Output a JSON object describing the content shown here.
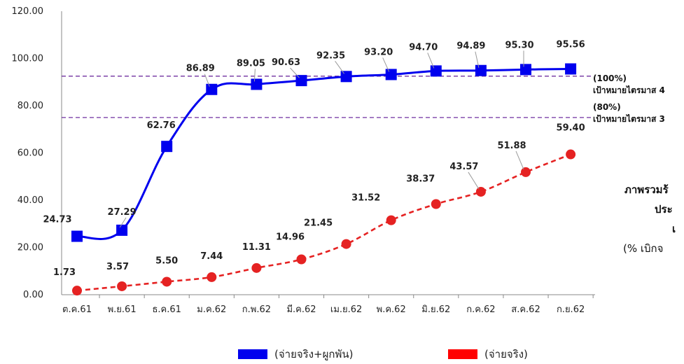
{
  "chart_data": {
    "type": "line",
    "categories": [
      "ต.ค.61",
      "พ.ย.61",
      "ธ.ค.61",
      "ม.ค.62",
      "ก.พ.62",
      "มี.ค.62",
      "เม.ย.62",
      "พ.ค.62",
      "มิ.ย.62",
      "ก.ค.62",
      "ส.ค.62",
      "ก.ย.62"
    ],
    "series": [
      {
        "name": "(จ่ายจริง+ผูกพัน)",
        "color": "#0000ee",
        "marker": "square",
        "line": "solid",
        "values": [
          24.73,
          27.29,
          62.76,
          86.89,
          89.05,
          90.63,
          92.35,
          93.2,
          94.7,
          94.89,
          95.3,
          95.56
        ],
        "labels": [
          "24.73",
          "27.29",
          "62.76",
          "86.89",
          "89.05",
          "90.63",
          "92.35",
          "93.20",
          "94.70",
          "94.89",
          "95.30",
          "95.56"
        ]
      },
      {
        "name": "(จ่ายจริง)",
        "color": "#e52222",
        "marker": "circle",
        "line": "dashed",
        "values": [
          1.73,
          3.57,
          5.5,
          7.44,
          11.31,
          14.96,
          21.45,
          31.52,
          38.37,
          43.57,
          51.88,
          59.4
        ],
        "labels": [
          "1.73",
          "3.57",
          "5.50",
          "7.44",
          "11.31",
          "14.96",
          "21.45",
          "31.52",
          "38.37",
          "43.57",
          "51.88",
          "59.40"
        ]
      }
    ],
    "yticks": [
      "0.00",
      "20.00",
      "40.00",
      "60.00",
      "80.00",
      "100.00",
      "120.00"
    ],
    "ylim": [
      0,
      120
    ],
    "reference_lines": [
      {
        "value": 92.5,
        "label1": "(100%)",
        "label2": "เป้าหมายไตรมาส 4",
        "color": "#7030a0"
      },
      {
        "value": 75,
        "label1": "(80%)",
        "label2": "เป้าหมายไตรมาส 3",
        "color": "#7030a0"
      }
    ],
    "side_text": [
      "ภาพรวมร้",
      "ประ",
      "เ",
      "(% เบิกจ"
    ],
    "grid": false,
    "legend_position": "bottom"
  }
}
